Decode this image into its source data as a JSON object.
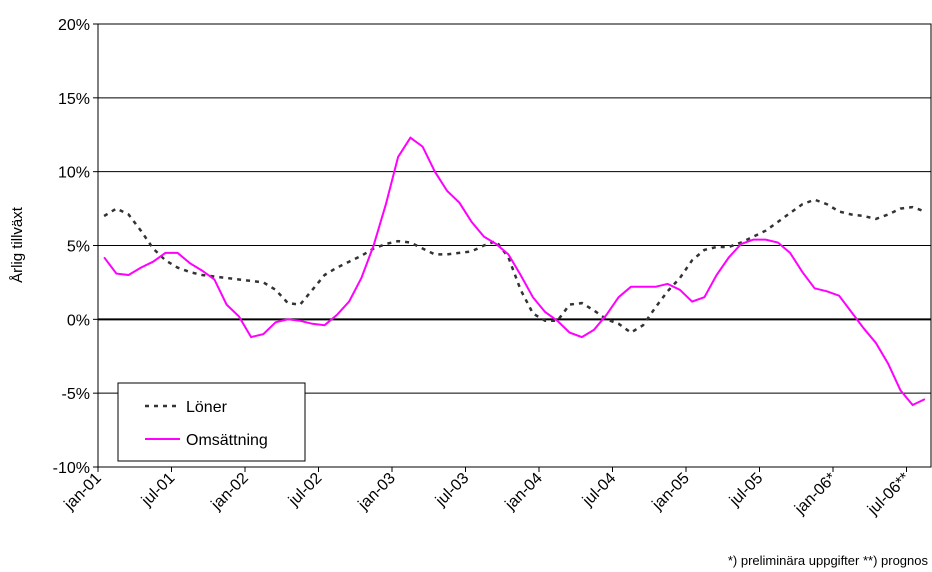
{
  "chart_data": {
    "type": "line",
    "y_label": "Årlig tillväxt",
    "footnote": "*) preliminära uppgifter **) prognos",
    "categories": [
      "jan-01",
      null,
      null,
      null,
      null,
      null,
      "jul-01",
      null,
      null,
      null,
      null,
      null,
      "jan-02",
      null,
      null,
      null,
      null,
      null,
      "jul-02",
      null,
      null,
      null,
      null,
      null,
      "jan-03",
      null,
      null,
      null,
      null,
      null,
      "jul-03",
      null,
      null,
      null,
      null,
      null,
      "jan-04",
      null,
      null,
      null,
      null,
      null,
      "jul-04",
      null,
      null,
      null,
      null,
      null,
      "jan-05",
      null,
      null,
      null,
      null,
      null,
      "jul-05",
      null,
      null,
      null,
      null,
      null,
      "jan-06*",
      null,
      null,
      null,
      null,
      null,
      "jul-06**",
      null
    ],
    "series": [
      {
        "name": "Löner",
        "color": "#333333",
        "dash": true,
        "values": [
          7.0,
          7.5,
          7.1,
          6.0,
          4.8,
          4.0,
          3.5,
          3.2,
          3.0,
          2.9,
          2.8,
          2.7,
          2.6,
          2.5,
          2.0,
          1.1,
          1.0,
          2.0,
          3.0,
          3.5,
          3.9,
          4.3,
          4.8,
          5.1,
          5.3,
          5.2,
          4.8,
          4.4,
          4.4,
          4.5,
          4.6,
          5.0,
          5.3,
          4.2,
          2.0,
          0.4,
          -0.1,
          -0.1,
          1.0,
          1.1,
          0.6,
          0.0,
          -0.3,
          -0.9,
          -0.4,
          0.8,
          1.9,
          2.8,
          4.0,
          4.7,
          4.9,
          4.9,
          5.2,
          5.6,
          6.0,
          6.6,
          7.2,
          7.8,
          8.1,
          7.8,
          7.3,
          7.1,
          7.0,
          6.8,
          7.1,
          7.5,
          7.6,
          7.3
        ]
      },
      {
        "name": "Omsättning",
        "color": "#ff00ff",
        "dash": false,
        "values": [
          4.2,
          3.1,
          3.0,
          3.5,
          3.9,
          4.5,
          4.5,
          3.8,
          3.3,
          2.7,
          1.0,
          0.2,
          -1.2,
          -1.0,
          -0.2,
          0.0,
          -0.1,
          -0.3,
          -0.4,
          0.3,
          1.2,
          2.8,
          5.0,
          7.8,
          11.0,
          12.3,
          11.7,
          10.0,
          8.7,
          7.9,
          6.6,
          5.6,
          5.1,
          4.4,
          3.0,
          1.5,
          0.5,
          -0.1,
          -0.9,
          -1.2,
          -0.7,
          0.3,
          1.5,
          2.2,
          2.2,
          2.2,
          2.4,
          2.0,
          1.2,
          1.5,
          3.0,
          4.2,
          5.1,
          5.4,
          5.4,
          5.2,
          4.5,
          3.2,
          2.1,
          1.9,
          1.6,
          0.5,
          -0.6,
          -1.6,
          -3.0,
          -4.8,
          -5.8,
          -5.4
        ]
      }
    ],
    "ylim": [
      -10,
      20
    ],
    "yticks": [
      {
        "value": -10,
        "label": "-10%"
      },
      {
        "value": -5,
        "label": "-5%"
      },
      {
        "value": 0,
        "label": "0%"
      },
      {
        "value": 5,
        "label": "5%"
      },
      {
        "value": 10,
        "label": "10%"
      },
      {
        "value": 15,
        "label": "15%"
      },
      {
        "value": 20,
        "label": "20%"
      }
    ],
    "grid": true
  }
}
